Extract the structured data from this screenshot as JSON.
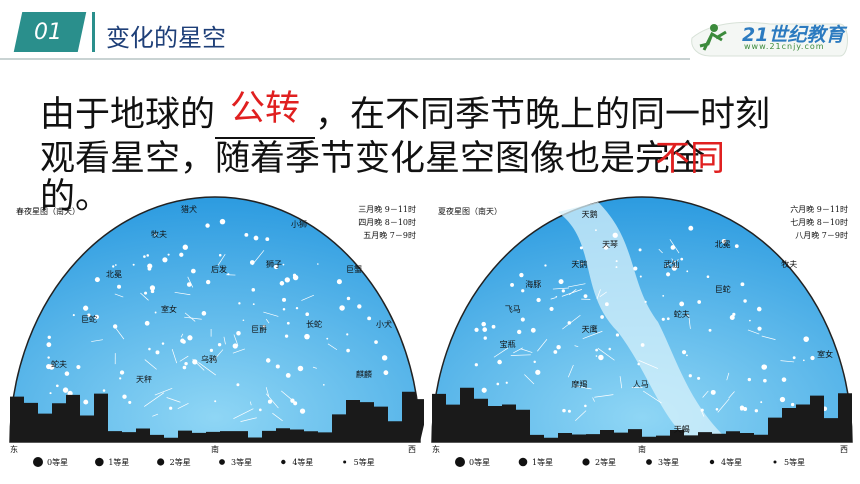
{
  "header": {
    "section_number": "01",
    "title": "变化的星空"
  },
  "logo": {
    "name": "21世纪教育",
    "url": "www.21cnjy.com"
  },
  "body": {
    "text_1": "由于地球的",
    "blank_1": "公转",
    "text_2": "，在不同季节晚上的同一时刻",
    "text_3": "观看星空，随着季节变化星空图像也是完全",
    "blank_2": "不同",
    "text_4": "的。"
  },
  "charts": [
    {
      "title": "春夜星图（南天）",
      "times": [
        "三月晚 9－11时",
        "四月晚 8－10时",
        "五月晚 7－9时"
      ],
      "constellations": [
        "猎犬",
        "牧夫",
        "小狮",
        "北冕",
        "后发",
        "狮子",
        "巨蟹",
        "巨蛇",
        "室女",
        "长蛇",
        "小犬",
        "蛇夫",
        "天秤",
        "乌鸦",
        "巨爵",
        "麒麟"
      ],
      "directions": [
        "东",
        "南",
        "西"
      ]
    },
    {
      "title": "夏夜星图（南天）",
      "times": [
        "六月晚 9－11时",
        "七月晚 8－10时",
        "八月晚 7－9时"
      ],
      "constellations": [
        "天鹅",
        "天琴",
        "天鹅",
        "海豚",
        "武仙",
        "北冕",
        "牧夫",
        "飞马",
        "天鹰",
        "蛇夫",
        "巨蛇",
        "宝瓶",
        "人马",
        "摩羯",
        "天蝎",
        "室女"
      ],
      "directions": [
        "东",
        "南",
        "西"
      ]
    }
  ],
  "legend": [
    "0等星",
    "1等星",
    "2等星",
    "3等星",
    "4等星",
    "5等星"
  ]
}
